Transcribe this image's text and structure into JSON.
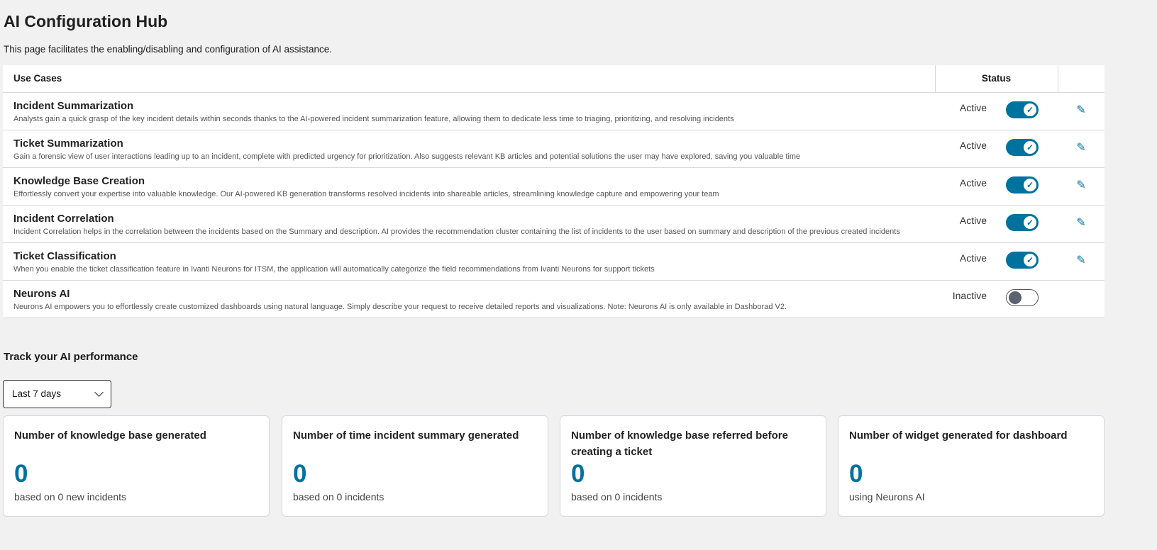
{
  "page": {
    "title": "AI Configuration Hub",
    "subtitle": "This page facilitates the enabling/disabling and configuration of AI assistance."
  },
  "table": {
    "headers": {
      "use_cases": "Use Cases",
      "status": "Status"
    },
    "rows": [
      {
        "name": "Incident Summarization",
        "desc": "Analysts gain a quick grasp of the key incident details within seconds thanks to the AI-powered incident summarization feature, allowing them to dedicate less time to triaging, prioritizing, and resolving incidents",
        "status": "Active",
        "enabled": true,
        "editable": true
      },
      {
        "name": "Ticket Summarization",
        "desc": "Gain a forensic view of user interactions leading up to an incident, complete with predicted urgency for prioritization. Also suggests relevant KB articles and potential solutions the user may have explored, saving you valuable time",
        "status": "Active",
        "enabled": true,
        "editable": true
      },
      {
        "name": "Knowledge Base Creation",
        "desc": "Effortlessly convert your expertise into valuable knowledge. Our AI-powered KB generation transforms resolved incidents into shareable articles, streamlining knowledge capture and empowering your team",
        "status": "Active",
        "enabled": true,
        "editable": true
      },
      {
        "name": "Incident Correlation",
        "desc": "Incident Correlation helps in the correlation between the incidents based on the Summary and description. AI provides the recommendation cluster containing the list of incidents to the user based on summary and description of the previous created incidents",
        "status": "Active",
        "enabled": true,
        "editable": true
      },
      {
        "name": "Ticket Classification",
        "desc": "When you enable the ticket classification feature in Ivanti Neurons for ITSM, the application will automatically categorize the field recommendations from Ivanti Neurons for support tickets",
        "status": "Active",
        "enabled": true,
        "editable": true
      },
      {
        "name": "Neurons AI",
        "desc": "Neurons AI empowers you to effortlessly create customized dashboards using natural language. Simply describe your request to receive detailed reports and visualizations. Note: Neurons AI is only available in Dashborad V2.",
        "status": "Inactive",
        "enabled": false,
        "editable": false
      }
    ]
  },
  "performance": {
    "title": "Track your AI performance",
    "range": "Last 7 days",
    "cards": [
      {
        "title": "Number of knowledge base generated",
        "value": "0",
        "caption": "based on 0 new incidents"
      },
      {
        "title": "Number of time incident summary generated",
        "value": "0",
        "caption": "based on 0 incidents"
      },
      {
        "title": "Number of knowledge base referred before creating a ticket",
        "value": "0",
        "caption": "based on 0 incidents"
      },
      {
        "title": "Number of widget generated for dashboard",
        "value": "0",
        "caption": "using Neurons AI"
      }
    ]
  },
  "colors": {
    "accent": "#00729e"
  }
}
